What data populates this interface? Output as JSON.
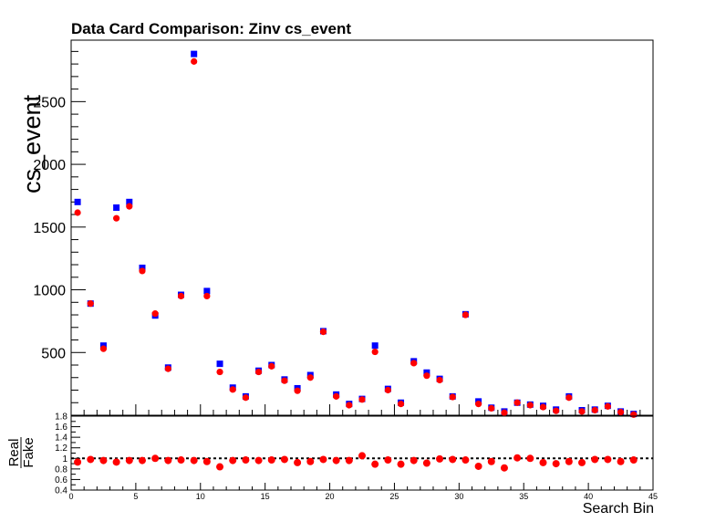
{
  "chart_data": [
    {
      "type": "scatter",
      "title": "Data Card Comparison: Zinv cs_event",
      "ylabel": "cs_event",
      "xlim": [
        0,
        45
      ],
      "ylim": [
        0,
        2990
      ],
      "yticks": [
        500,
        1000,
        1500,
        2000,
        2500
      ],
      "grid": false,
      "legend": "none",
      "x": [
        0.5,
        1.5,
        2.5,
        3.5,
        4.5,
        5.5,
        6.5,
        7.5,
        8.5,
        9.5,
        10.5,
        11.5,
        12.5,
        13.5,
        14.5,
        15.5,
        16.5,
        17.5,
        18.5,
        19.5,
        20.5,
        21.5,
        22.5,
        23.5,
        24.5,
        25.5,
        26.5,
        27.5,
        28.5,
        29.5,
        30.5,
        31.5,
        32.5,
        33.5,
        34.5,
        35.5,
        36.5,
        37.5,
        38.5,
        39.5,
        40.5,
        41.5,
        42.5,
        43.5
      ],
      "series": [
        {
          "marker": "square",
          "color": "#0000ff",
          "values": [
            1700,
            890,
            555,
            1655,
            1700,
            1175,
            795,
            380,
            960,
            2880,
            990,
            410,
            220,
            150,
            355,
            400,
            285,
            215,
            320,
            670,
            165,
            90,
            130,
            555,
            210,
            100,
            430,
            340,
            290,
            150,
            805,
            110,
            60,
            30,
            100,
            85,
            75,
            45,
            150,
            40,
            45,
            75,
            30,
            10
          ]
        },
        {
          "marker": "circle",
          "color": "#ff0000",
          "values": [
            1615,
            890,
            530,
            1570,
            1665,
            1150,
            810,
            370,
            950,
            2820,
            950,
            345,
            205,
            140,
            345,
            390,
            275,
            195,
            300,
            665,
            150,
            80,
            125,
            505,
            200,
            90,
            415,
            315,
            280,
            145,
            800,
            90,
            55,
            20,
            100,
            80,
            65,
            35,
            140,
            30,
            40,
            70,
            25,
            5
          ]
        }
      ]
    },
    {
      "type": "scatter",
      "ylabel_num": "Real",
      "ylabel_den": "Fake",
      "xlabel": "Search Bin",
      "xlim": [
        0,
        45
      ],
      "ylim": [
        0.4,
        1.8
      ],
      "yticks": [
        0.4,
        0.6,
        0.8,
        1,
        1.2,
        1.4,
        1.6,
        1.8
      ],
      "xticks": [
        0,
        5,
        10,
        15,
        20,
        25,
        30,
        35,
        40,
        45
      ],
      "reference_line": 1,
      "series": [
        {
          "marker": "circle",
          "color": "#ff0000",
          "x": [
            0.5,
            1.5,
            2.5,
            3.5,
            4.5,
            5.5,
            6.5,
            7.5,
            8.5,
            9.5,
            10.5,
            11.5,
            12.5,
            13.5,
            14.5,
            15.5,
            16.5,
            17.5,
            18.5,
            19.5,
            20.5,
            21.5,
            22.5,
            23.5,
            24.5,
            25.5,
            26.5,
            27.5,
            28.5,
            29.5,
            30.5,
            31.5,
            32.5,
            33.5,
            34.5,
            35.5,
            36.5,
            37.5,
            38.5,
            39.5,
            40.5,
            41.5,
            42.5,
            43.5
          ],
          "values": [
            0.93,
            0.98,
            0.96,
            0.93,
            0.96,
            0.96,
            1.0,
            0.96,
            0.97,
            0.96,
            0.94,
            0.84,
            0.96,
            0.97,
            0.96,
            0.97,
            0.98,
            0.92,
            0.94,
            0.98,
            0.96,
            0.96,
            1.05,
            0.89,
            0.97,
            0.89,
            0.96,
            0.91,
            0.99,
            0.98,
            0.97,
            0.85,
            0.94,
            0.82,
            1.01,
            1.0,
            0.92,
            0.9,
            0.94,
            0.92,
            0.98,
            0.98,
            0.94,
            0.97
          ]
        }
      ]
    }
  ]
}
